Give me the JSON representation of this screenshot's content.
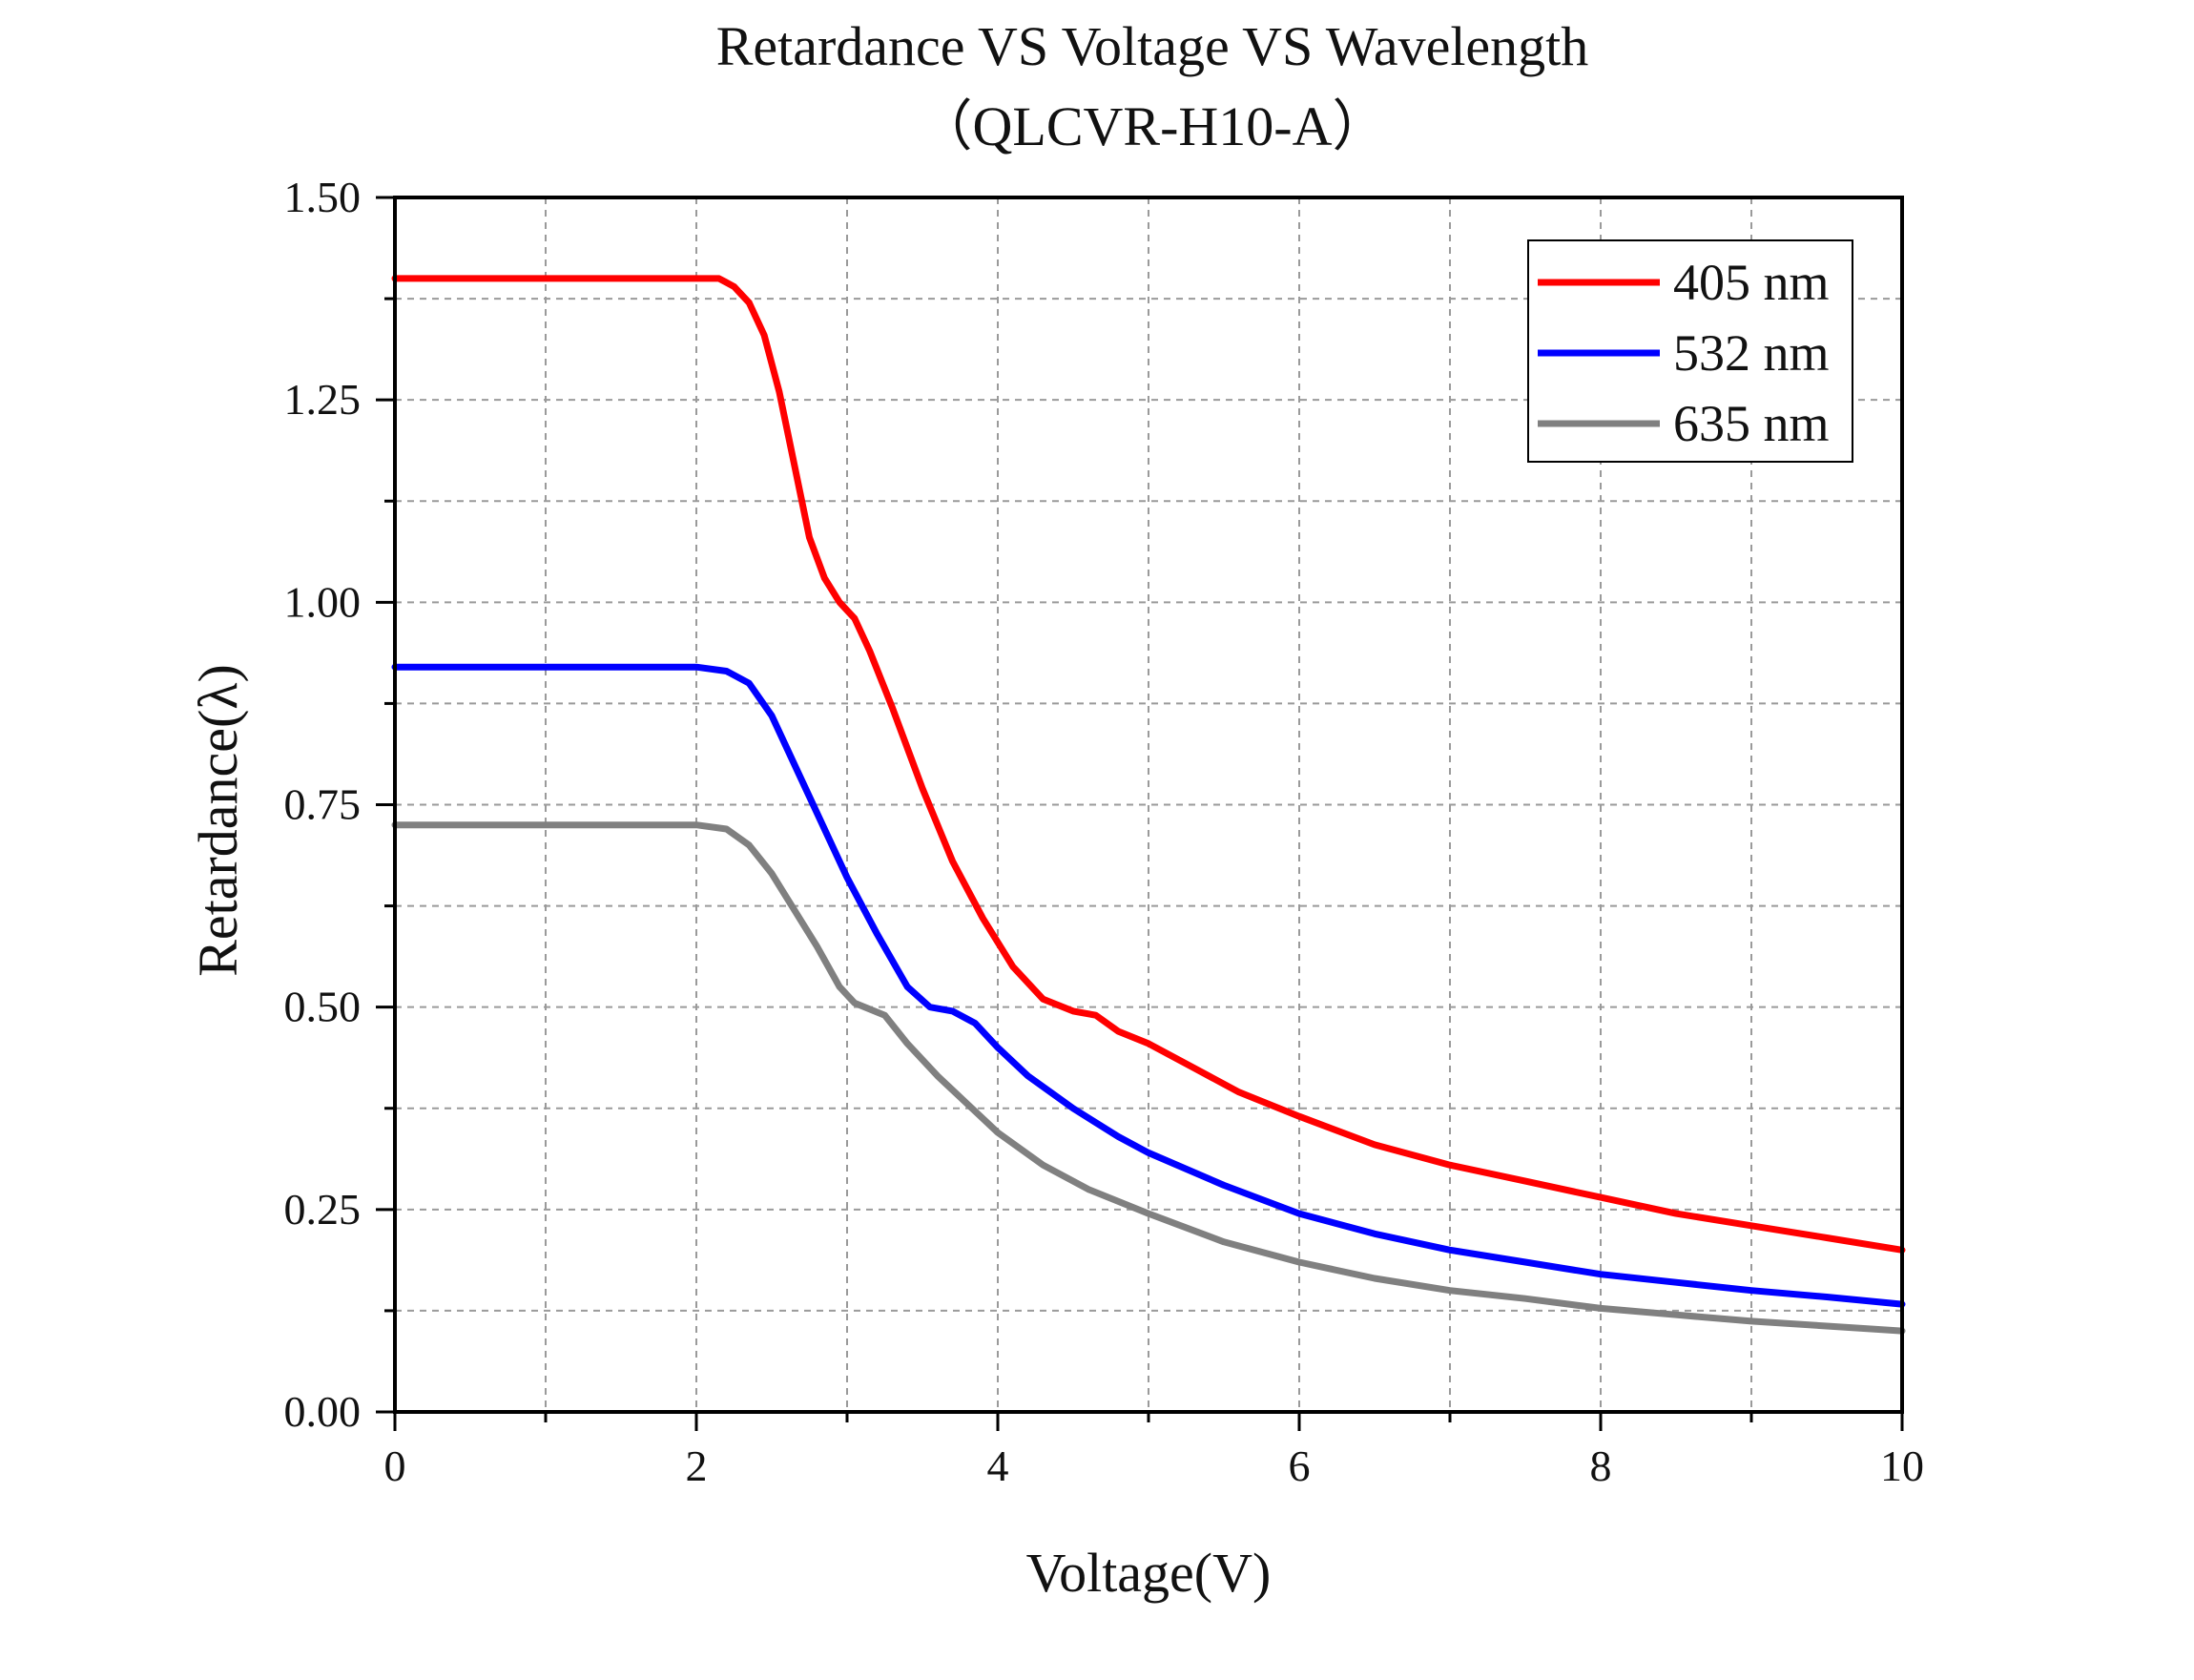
{
  "chart_data": {
    "type": "line",
    "title": "Retardance VS Voltage VS Wavelength",
    "subtitle": "（QLCVR-H10-A）",
    "xlabel": "Voltage(V)",
    "ylabel": "Retardance(λ)",
    "xlim": [
      0,
      10
    ],
    "ylim": [
      0,
      1.5
    ],
    "x_ticks": [
      "0",
      "2",
      "4",
      "6",
      "8",
      "10"
    ],
    "y_ticks": [
      "0.00",
      "0.25",
      "0.50",
      "0.75",
      "1.00",
      "1.25",
      "1.50"
    ],
    "grid": true,
    "legend_position": "top-right",
    "series": [
      {
        "name": "405 nm",
        "color": "#ff0000",
        "points": [
          [
            0,
            1.4
          ],
          [
            1,
            1.4
          ],
          [
            2,
            1.4
          ],
          [
            2.15,
            1.4
          ],
          [
            2.25,
            1.39
          ],
          [
            2.35,
            1.37
          ],
          [
            2.45,
            1.33
          ],
          [
            2.55,
            1.26
          ],
          [
            2.65,
            1.17
          ],
          [
            2.75,
            1.08
          ],
          [
            2.85,
            1.03
          ],
          [
            2.95,
            1.0
          ],
          [
            3.05,
            0.98
          ],
          [
            3.15,
            0.94
          ],
          [
            3.3,
            0.87
          ],
          [
            3.5,
            0.77
          ],
          [
            3.7,
            0.68
          ],
          [
            3.9,
            0.61
          ],
          [
            4.1,
            0.55
          ],
          [
            4.3,
            0.51
          ],
          [
            4.5,
            0.495
          ],
          [
            4.65,
            0.49
          ],
          [
            4.8,
            0.47
          ],
          [
            5.0,
            0.455
          ],
          [
            5.3,
            0.425
          ],
          [
            5.6,
            0.395
          ],
          [
            6.0,
            0.365
          ],
          [
            6.5,
            0.33
          ],
          [
            7.0,
            0.305
          ],
          [
            7.5,
            0.285
          ],
          [
            8.0,
            0.265
          ],
          [
            8.5,
            0.245
          ],
          [
            9.0,
            0.23
          ],
          [
            9.5,
            0.215
          ],
          [
            10,
            0.2
          ]
        ]
      },
      {
        "name": "532 nm",
        "color": "#0000ff",
        "points": [
          [
            0,
            0.92
          ],
          [
            1,
            0.92
          ],
          [
            2,
            0.92
          ],
          [
            2.2,
            0.915
          ],
          [
            2.35,
            0.9
          ],
          [
            2.5,
            0.86
          ],
          [
            2.65,
            0.8
          ],
          [
            2.8,
            0.74
          ],
          [
            3.0,
            0.66
          ],
          [
            3.2,
            0.59
          ],
          [
            3.4,
            0.525
          ],
          [
            3.55,
            0.5
          ],
          [
            3.7,
            0.495
          ],
          [
            3.85,
            0.48
          ],
          [
            4.0,
            0.45
          ],
          [
            4.2,
            0.415
          ],
          [
            4.5,
            0.375
          ],
          [
            4.8,
            0.34
          ],
          [
            5.0,
            0.32
          ],
          [
            5.5,
            0.28
          ],
          [
            6.0,
            0.245
          ],
          [
            6.5,
            0.22
          ],
          [
            7.0,
            0.2
          ],
          [
            7.5,
            0.185
          ],
          [
            8.0,
            0.17
          ],
          [
            8.5,
            0.16
          ],
          [
            9.0,
            0.15
          ],
          [
            9.5,
            0.142
          ],
          [
            10,
            0.133
          ]
        ]
      },
      {
        "name": "635 nm",
        "color": "#808080",
        "points": [
          [
            0,
            0.725
          ],
          [
            1,
            0.725
          ],
          [
            2,
            0.725
          ],
          [
            2.2,
            0.72
          ],
          [
            2.35,
            0.7
          ],
          [
            2.5,
            0.665
          ],
          [
            2.65,
            0.62
          ],
          [
            2.8,
            0.575
          ],
          [
            2.95,
            0.525
          ],
          [
            3.05,
            0.505
          ],
          [
            3.25,
            0.49
          ],
          [
            3.4,
            0.455
          ],
          [
            3.6,
            0.415
          ],
          [
            3.8,
            0.38
          ],
          [
            4.0,
            0.345
          ],
          [
            4.3,
            0.305
          ],
          [
            4.6,
            0.275
          ],
          [
            5.0,
            0.245
          ],
          [
            5.5,
            0.21
          ],
          [
            6.0,
            0.185
          ],
          [
            6.5,
            0.165
          ],
          [
            7.0,
            0.15
          ],
          [
            7.5,
            0.14
          ],
          [
            8.0,
            0.128
          ],
          [
            8.5,
            0.12
          ],
          [
            9.0,
            0.112
          ],
          [
            9.5,
            0.106
          ],
          [
            10,
            0.1
          ]
        ]
      }
    ]
  }
}
